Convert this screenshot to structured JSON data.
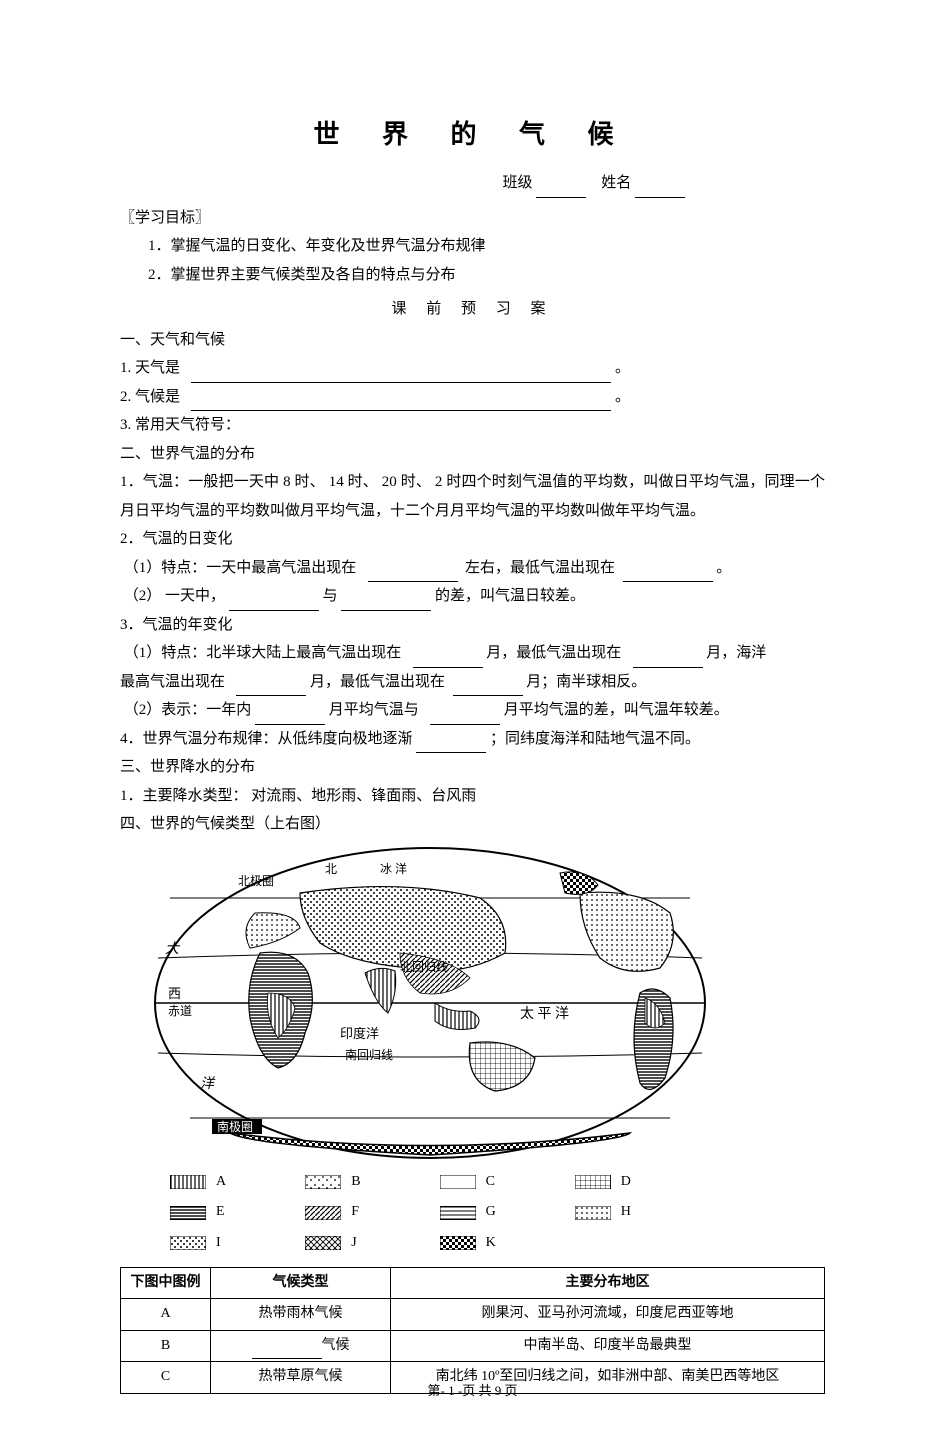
{
  "title": "世 界 的 气 候",
  "name_row": {
    "class_label": "班级",
    "name_label": "姓名"
  },
  "goals_header": "〖学习目标〗",
  "goals": [
    "1．掌握气温的日变化、年变化及世界气温分布规律",
    "2．掌握世界主要气候类型及各自的特点与分布"
  ],
  "sub_header": "课 前 预 习 案",
  "sec1_header": "一、天气和气候",
  "q1_1": "1. 天气是",
  "q1_1_end": "。",
  "q1_2": "2. 气候是",
  "q1_2_end": "。",
  "q1_3": "3. 常用天气符号：",
  "sec2_header": "二、世界气温的分布",
  "q2_1": "1．气温：一般把一天中    8 时、 14 时、 20 时、 2 时四个时刻气温值的平均数，叫做日平均气温，同理一个月日平均气温的平均数叫做月平均气温，十二个月月平均气温的平均数叫做年平均气温。",
  "q2_2_header": "2．气温的日变化",
  "q2_2_1a": "（1）特点：一天中最高气温出现在",
  "q2_2_1b": "左右，最低气温出现在",
  "q2_2_1c": "。",
  "q2_2_2a": "（2） 一天中，",
  "q2_2_2b": "与",
  "q2_2_2c": "的差，叫气温日较差。",
  "q2_3_header": "3．气温的年变化",
  "q2_3_1a": "（1）特点：北半球大陆上最高气温出现在",
  "q2_3_1b": "月，最低气温出现在",
  "q2_3_1c": "月，海洋",
  "q2_3_1d": "最高气温出现在",
  "q2_3_1e": "月，最低气温出现在",
  "q2_3_1f": "月；南半球相反。",
  "q2_3_2a": "（2）表示：一年内",
  "q2_3_2b": "月平均气温与",
  "q2_3_2c": "月平均气温的差，叫气温年较差。",
  "q2_4a": "4．世界气温分布规律：从低纬度向极地逐渐",
  "q2_4b": "；同纬度海洋和陆地气温不同。",
  "sec3_header": "三、世界降水的分布",
  "q3_1": "1．主要降水类型：    对流雨、地形雨、锋面雨、台风雨",
  "sec4_header": " 四、世界的气候类型（上右图）",
  "map": {
    "labels": {
      "arctic_circle": "北极圈",
      "arctic": "北",
      "arctic_ocean": "冰    洋",
      "tropic_cancer": "北回归线",
      "indian_ocean": "印度洋",
      "tropic_capricorn": "南回归线",
      "pacific": "太  平  洋",
      "atlantic_w": "大",
      "atlantic_w2": "西",
      "atlantic_s": "洋",
      "equator_w": "赤道",
      "antarctic_circle": "南极圈"
    },
    "stroke": "#000000",
    "bg": "#ffffff"
  },
  "legend": [
    {
      "letter": "A",
      "pattern": "vert"
    },
    {
      "letter": "B",
      "pattern": "dots-sparse"
    },
    {
      "letter": "C",
      "pattern": "blank"
    },
    {
      "letter": "D",
      "pattern": "grid"
    },
    {
      "letter": "E",
      "pattern": "horiz-dense"
    },
    {
      "letter": "F",
      "pattern": "diag"
    },
    {
      "letter": "G",
      "pattern": "horiz"
    },
    {
      "letter": "H",
      "pattern": "dots"
    },
    {
      "letter": "I",
      "pattern": "dots-med"
    },
    {
      "letter": "J",
      "pattern": "cross"
    },
    {
      "letter": "K",
      "pattern": "checker"
    }
  ],
  "table": {
    "headers": [
      "下图中图例",
      "气候类型",
      "主要分布地区"
    ],
    "rows": [
      {
        "k": "A",
        "type_pre": "",
        "type": "热带雨林气候",
        "type_suf": "",
        "dist": "刚果河、亚马孙河流域，印度尼西亚等地"
      },
      {
        "k": "B",
        "type_pre": "",
        "type_blank": true,
        "type_suf": "气候",
        "dist": "中南半岛、印度半岛最典型"
      },
      {
        "k": "C",
        "type_pre": "",
        "type": "热带草原气候",
        "type_suf": "",
        "dist": "南北纬 10º至回归线之间，如非洲中部、南美巴西等地区"
      }
    ]
  },
  "footer": {
    "page_label": "第- 1 -页    共 9 页"
  }
}
